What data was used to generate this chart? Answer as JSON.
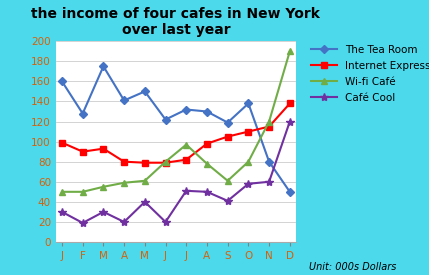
{
  "title": "the income of four cafes in New York\nover last year",
  "unit_label": "Unit: 000s Dollars",
  "months": [
    "J",
    "F",
    "M",
    "A",
    "M",
    "J",
    "J",
    "A",
    "S",
    "O",
    "N",
    "D"
  ],
  "series": [
    {
      "name": "The Tea Room",
      "values": [
        160,
        128,
        175,
        141,
        150,
        122,
        132,
        130,
        119,
        138,
        80,
        50
      ],
      "color": "#4472C4",
      "marker": "D",
      "markersize": 4
    },
    {
      "name": "Internet Express",
      "values": [
        99,
        90,
        93,
        80,
        79,
        79,
        82,
        98,
        105,
        110,
        115,
        138
      ],
      "color": "#FF0000",
      "marker": "s",
      "markersize": 4
    },
    {
      "name": "Wi-fi Café",
      "values": [
        50,
        50,
        55,
        59,
        61,
        80,
        97,
        78,
        61,
        80,
        120,
        190
      ],
      "color": "#70AD47",
      "marker": "^",
      "markersize": 5
    },
    {
      "name": "Café Cool",
      "values": [
        30,
        19,
        30,
        20,
        40,
        20,
        51,
        50,
        41,
        58,
        60,
        120
      ],
      "color": "#7030A0",
      "marker": "*",
      "markersize": 6
    }
  ],
  "ylim": [
    0,
    200
  ],
  "yticks": [
    0,
    20,
    40,
    60,
    80,
    100,
    120,
    140,
    160,
    180,
    200
  ],
  "background_color": "#FFFFFF",
  "border_color": "#4DD9EC",
  "title_fontsize": 10,
  "tick_fontsize": 7.5,
  "legend_fontsize": 7.5,
  "tick_color": "#D4620A"
}
